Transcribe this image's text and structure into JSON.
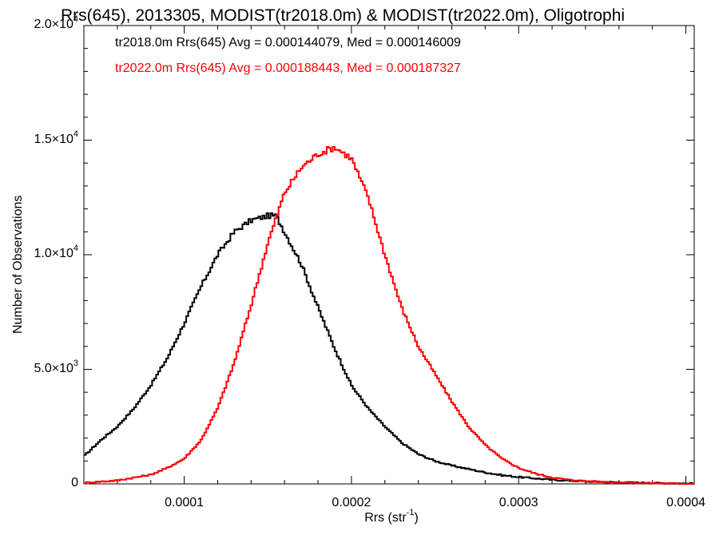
{
  "chart_data": {
    "type": "line",
    "title": "Rrs(645), 2013305, MODIST(tr2018.0m) & MODIST(tr2022.0m), Oligotrophi",
    "xlabel": "Rrs (str",
    "xlabel_exp": "-1",
    "xlabel_suffix": ")",
    "ylabel": "Number of Observations",
    "xlim": [
      4e-05,
      0.000405
    ],
    "ylim": [
      0,
      20000
    ],
    "x_ticks": [
      "0.0001",
      "0.0002",
      "0.0003",
      "0.0004"
    ],
    "x_tick_values": [
      0.0001,
      0.0002,
      0.0003,
      0.0004
    ],
    "y_ticks": [
      {
        "value": 0,
        "mant": "0",
        "exp": ""
      },
      {
        "value": 5000,
        "mant": "5.0×10",
        "exp": "3"
      },
      {
        "value": 10000,
        "mant": "1.0×10",
        "exp": "4"
      },
      {
        "value": 15000,
        "mant": "1.5×10",
        "exp": "4"
      },
      {
        "value": 20000,
        "mant": "2.0×10",
        "exp": "4"
      }
    ],
    "legend": [
      {
        "text": "tr2018.0m Rrs(645) Avg = 0.000144079, Med = 0.000146009",
        "color": "#000000"
      },
      {
        "text": "tr2022.0m Rrs(645) Avg = 0.000188443, Med = 0.000187327",
        "color": "#ff0000"
      }
    ],
    "series": [
      {
        "color": "#000000",
        "x": [
          4e-05,
          5e-05,
          6e-05,
          7e-05,
          8e-05,
          9e-05,
          0.0001,
          0.00011,
          0.00012,
          0.00013,
          0.00014,
          0.00015,
          0.000155,
          0.00016,
          0.00017,
          0.00018,
          0.00019,
          0.0002,
          0.00021,
          0.00022,
          0.00023,
          0.00024,
          0.00025,
          0.00026,
          0.00027,
          0.00028,
          0.00029,
          0.0003,
          0.00032,
          0.00034,
          0.00036,
          0.00038,
          0.0004,
          0.000405
        ],
        "y": [
          1200,
          1900,
          2500,
          3300,
          4300,
          5500,
          7000,
          8600,
          10000,
          11000,
          11500,
          11700,
          11700,
          11000,
          9600,
          7700,
          5900,
          4300,
          3300,
          2500,
          1800,
          1300,
          1000,
          800,
          650,
          500,
          380,
          300,
          180,
          110,
          70,
          40,
          20,
          15
        ]
      },
      {
        "color": "#ff0000",
        "x": [
          4e-05,
          6e-05,
          8e-05,
          9e-05,
          0.0001,
          0.00011,
          0.00012,
          0.00013,
          0.00014,
          0.00015,
          0.00016,
          0.00017,
          0.00018,
          0.00019,
          0.0002,
          0.00021,
          0.00022,
          0.00023,
          0.00024,
          0.00025,
          0.00026,
          0.00027,
          0.00028,
          0.00029,
          0.0003,
          0.00031,
          0.00032,
          0.00033,
          0.00034,
          0.00036,
          0.00038,
          0.0004,
          0.000405
        ],
        "y": [
          50,
          150,
          400,
          700,
          1100,
          1900,
          3300,
          5300,
          7800,
          10500,
          12700,
          13800,
          14400,
          14700,
          14200,
          12500,
          10000,
          7700,
          6000,
          4800,
          3600,
          2500,
          1700,
          1100,
          700,
          450,
          280,
          180,
          120,
          60,
          30,
          10,
          5
        ]
      }
    ]
  }
}
